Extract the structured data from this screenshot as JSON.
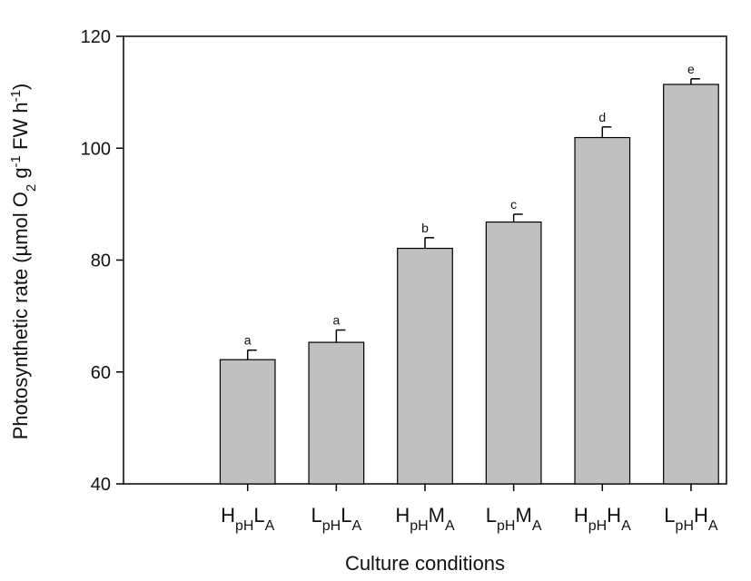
{
  "chart_data": {
    "type": "bar",
    "xlabel": "Culture conditions",
    "ylabel": {
      "parts": [
        {
          "text": "Photosynthetic rate (µmol O"
        },
        {
          "text": "2",
          "sub": true
        },
        {
          "text": " g"
        },
        {
          "text": "-1",
          "sup": true
        },
        {
          "text": " FW h"
        },
        {
          "text": "-1",
          "sup": true
        },
        {
          "text": ")"
        }
      ]
    },
    "ylim": [
      40,
      120
    ],
    "yticks": [
      "40",
      "60",
      "80",
      "100",
      "120"
    ],
    "categories": [
      {
        "parts": [
          {
            "text": "H"
          },
          {
            "text": "pH",
            "sub": true
          },
          {
            "text": "L"
          },
          {
            "text": "A",
            "sub": true
          }
        ]
      },
      {
        "parts": [
          {
            "text": "L"
          },
          {
            "text": "pH",
            "sub": true
          },
          {
            "text": "L"
          },
          {
            "text": "A",
            "sub": true
          }
        ]
      },
      {
        "parts": [
          {
            "text": "H"
          },
          {
            "text": "pH",
            "sub": true
          },
          {
            "text": "M"
          },
          {
            "text": "A",
            "sub": true
          }
        ]
      },
      {
        "parts": [
          {
            "text": "L"
          },
          {
            "text": "pH",
            "sub": true
          },
          {
            "text": "M"
          },
          {
            "text": "A",
            "sub": true
          }
        ]
      },
      {
        "parts": [
          {
            "text": "H"
          },
          {
            "text": "pH",
            "sub": true
          },
          {
            "text": "H"
          },
          {
            "text": "A",
            "sub": true
          }
        ]
      },
      {
        "parts": [
          {
            "text": "L"
          },
          {
            "text": "pH",
            "sub": true
          },
          {
            "text": "H"
          },
          {
            "text": "A",
            "sub": true
          }
        ]
      }
    ],
    "values": [
      62.2,
      65.3,
      82.1,
      86.8,
      101.9,
      111.4
    ],
    "errors": [
      1.7,
      2.2,
      1.9,
      1.4,
      1.9,
      1.0
    ],
    "labels": [
      "a",
      "a",
      "b",
      "c",
      "d",
      "e"
    ],
    "bar_color": "#c0c0c0",
    "edge_color": "#000000",
    "grid": false,
    "legend": "none"
  }
}
